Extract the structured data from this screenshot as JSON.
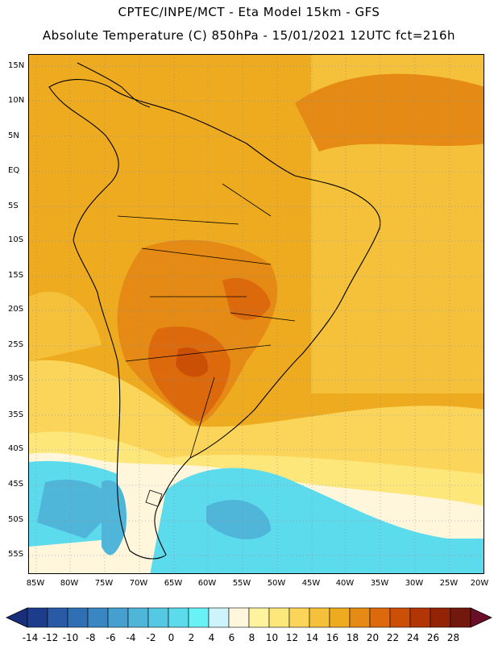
{
  "header": {
    "title_line1": "CPTEC/INPE/MCT -  Eta Model 15km - GFS",
    "title_line2": "Absolute Temperature (C) 850hPa - 15/01/2021 12UTC fct=216h"
  },
  "map": {
    "lat_labels": [
      "15N",
      "10N",
      "5N",
      "EQ",
      "5S",
      "10S",
      "15S",
      "20S",
      "25S",
      "30S",
      "35S",
      "40S",
      "45S",
      "50S",
      "55S"
    ],
    "lon_labels": [
      "85W",
      "80W",
      "75W",
      "70W",
      "65W",
      "60W",
      "55W",
      "50W",
      "45W",
      "40W",
      "35W",
      "30W",
      "25W",
      "20W"
    ]
  },
  "colorbar": {
    "labels": [
      "-14",
      "-12",
      "-10",
      "-8",
      "-6",
      "-4",
      "-2",
      "0",
      "2",
      "4",
      "6",
      "8",
      "10",
      "12",
      "14",
      "16",
      "18",
      "20",
      "22",
      "24",
      "26",
      "28"
    ],
    "colors": [
      "#1d3d8c",
      "#2a5aa6",
      "#2f6fb4",
      "#3a86c2",
      "#45a0cf",
      "#4fb6da",
      "#55c9e3",
      "#5cdbec",
      "#68f2f6",
      "#cdf4fb",
      "#fff6dc",
      "#fff3a0",
      "#fde77a",
      "#fbd55a",
      "#f5c13a",
      "#efab20",
      "#e58a14",
      "#dc6a0c",
      "#cc4f06",
      "#b23605",
      "#922304",
      "#73180c"
    ],
    "left_arrow_color": "#1a2f7a",
    "right_arrow_color": "#6b0e28"
  }
}
